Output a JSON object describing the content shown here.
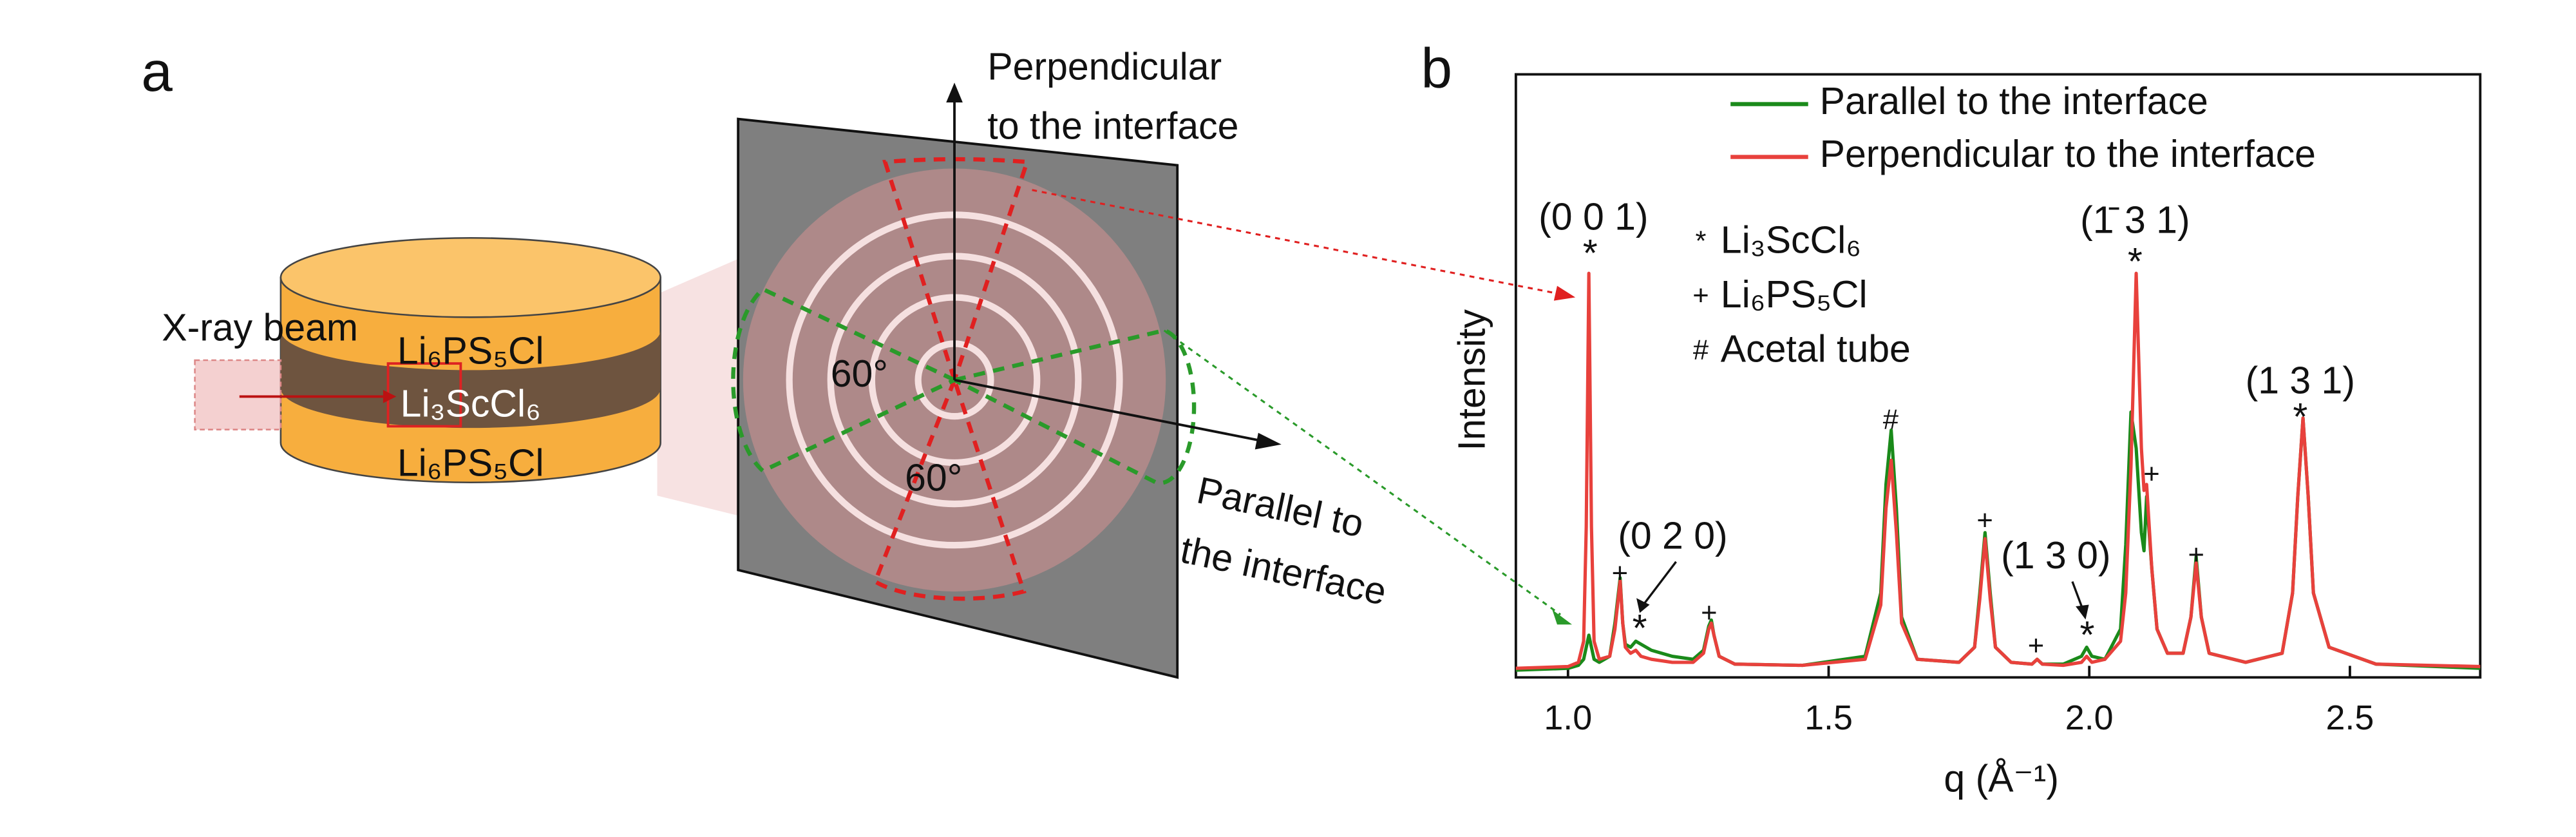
{
  "panel_a": {
    "label": "a",
    "beam": "X-ray beam",
    "layers": [
      "Li₆PS₅Cl",
      "Li₃ScCl₆",
      "Li₆PS₅Cl"
    ],
    "perpendicular": [
      "Perpendicular",
      "to the interface"
    ],
    "parallel": [
      "Parallel to",
      "the interface"
    ],
    "angles": [
      "60°",
      "60°"
    ]
  },
  "chart_data": {
    "type": "line",
    "panel_label": "b",
    "xlabel": "q (Å⁻¹)",
    "ylabel": "Intensity",
    "xlim": [
      0.9,
      2.75
    ],
    "ylim": [
      0,
      100
    ],
    "xticks": [
      {
        "value": 1,
        "label": "1.0"
      },
      1.5,
      {
        "value": 2,
        "label": "2.0"
      },
      2.5
    ],
    "legend": "top-right",
    "x": [
      0.9,
      1.0,
      1.02,
      1.03,
      1.035,
      1.04,
      1.045,
      1.05,
      1.06,
      1.08,
      1.09,
      1.1,
      1.105,
      1.11,
      1.12,
      1.13,
      1.14,
      1.16,
      1.2,
      1.24,
      1.26,
      1.27,
      1.275,
      1.28,
      1.29,
      1.32,
      1.45,
      1.57,
      1.6,
      1.61,
      1.62,
      1.63,
      1.64,
      1.67,
      1.75,
      1.78,
      1.79,
      1.8,
      1.81,
      1.82,
      1.85,
      1.89,
      1.9,
      1.91,
      1.95,
      1.985,
      1.995,
      2.005,
      2.03,
      2.06,
      2.07,
      2.08,
      2.09,
      2.1,
      2.105,
      2.11,
      2.12,
      2.13,
      2.15,
      2.18,
      2.195,
      2.205,
      2.215,
      2.23,
      2.3,
      2.37,
      2.39,
      2.4,
      2.41,
      2.42,
      2.43,
      2.46,
      2.55,
      2.75
    ],
    "series": [
      {
        "name": "Parallel to the interface",
        "color": "#1a8a1a",
        "values": [
          1.2,
          1.5,
          2,
          3,
          5,
          7,
          5,
          3,
          2.5,
          3.5,
          9,
          16.5,
          9,
          5.5,
          5,
          6,
          5.5,
          4.5,
          3.5,
          3,
          4.5,
          8.5,
          9.5,
          7,
          3.5,
          2.2,
          2,
          3.5,
          14,
          32,
          41,
          28,
          10,
          3,
          2.5,
          5,
          14,
          24,
          14,
          5,
          2.5,
          2.2,
          3,
          2.2,
          2.2,
          3.5,
          5,
          3.5,
          3,
          8,
          22,
          44,
          38,
          24,
          21,
          30,
          18,
          8,
          4,
          4,
          10,
          20,
          10,
          4,
          2.5,
          4,
          14,
          30,
          43,
          30,
          14,
          5,
          2.2,
          1.5
        ]
      },
      {
        "name": "Perpendicular to the interface",
        "color": "#e8413c",
        "values": [
          1.5,
          1.8,
          2.5,
          6,
          25,
          67,
          25,
          6,
          3,
          3.5,
          8,
          16,
          9,
          5,
          4,
          4.5,
          3.5,
          3,
          2.5,
          2.5,
          4,
          8,
          9,
          7,
          3.5,
          2.2,
          2,
          3,
          12,
          28,
          36,
          24,
          9,
          3,
          2.5,
          5,
          13,
          23,
          13,
          5,
          2.5,
          2.2,
          3,
          2.2,
          2,
          2.5,
          3.5,
          2.5,
          3,
          6,
          14,
          35,
          67,
          38,
          31,
          32,
          18,
          8,
          4,
          4,
          10,
          19,
          10,
          4,
          2.5,
          4,
          14,
          30,
          43,
          30,
          14,
          5,
          2.2,
          1.8
        ]
      }
    ],
    "key": [
      {
        "symbol": "*",
        "label": "Li₃ScCl₆"
      },
      {
        "symbol": "+",
        "label": "Li₆PS₅Cl"
      },
      {
        "symbol": "#",
        "label": "Acetal tube"
      }
    ],
    "annotations": [
      "(0 0 1)",
      "(0 2 0)",
      "(1 3 0)",
      "(1̄ 3 1)",
      "(1 3 1)"
    ],
    "peak_markers": [
      "*",
      "*",
      "+",
      "+",
      "#",
      "+",
      "+",
      "*",
      "*",
      "+",
      "+",
      "*"
    ]
  }
}
